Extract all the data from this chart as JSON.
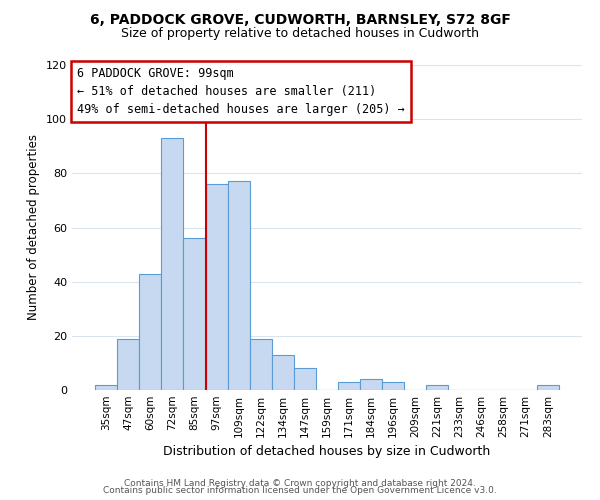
{
  "title": "6, PADDOCK GROVE, CUDWORTH, BARNSLEY, S72 8GF",
  "subtitle": "Size of property relative to detached houses in Cudworth",
  "xlabel": "Distribution of detached houses by size in Cudworth",
  "ylabel": "Number of detached properties",
  "bin_labels": [
    "35sqm",
    "47sqm",
    "60sqm",
    "72sqm",
    "85sqm",
    "97sqm",
    "109sqm",
    "122sqm",
    "134sqm",
    "147sqm",
    "159sqm",
    "171sqm",
    "184sqm",
    "196sqm",
    "209sqm",
    "221sqm",
    "233sqm",
    "246sqm",
    "258sqm",
    "271sqm",
    "283sqm"
  ],
  "bar_heights": [
    2,
    19,
    43,
    93,
    56,
    76,
    77,
    19,
    13,
    8,
    0,
    3,
    4,
    3,
    0,
    2,
    0,
    0,
    0,
    0,
    2
  ],
  "bar_color": "#c6d9f0",
  "bar_edge_color": "#5b9bd5",
  "vline_color": "#cc0000",
  "vline_pos": 4.5,
  "annotation_title": "6 PADDOCK GROVE: 99sqm",
  "annotation_line1": "← 51% of detached houses are smaller (211)",
  "annotation_line2": "49% of semi-detached houses are larger (205) →",
  "annotation_box_color": "#ffffff",
  "annotation_border_color": "#cc0000",
  "ylim": [
    0,
    120
  ],
  "yticks": [
    0,
    20,
    40,
    60,
    80,
    100,
    120
  ],
  "footnote1": "Contains HM Land Registry data © Crown copyright and database right 2024.",
  "footnote2": "Contains public sector information licensed under the Open Government Licence v3.0.",
  "background_color": "#ffffff",
  "grid_color": "#d8e4f0"
}
